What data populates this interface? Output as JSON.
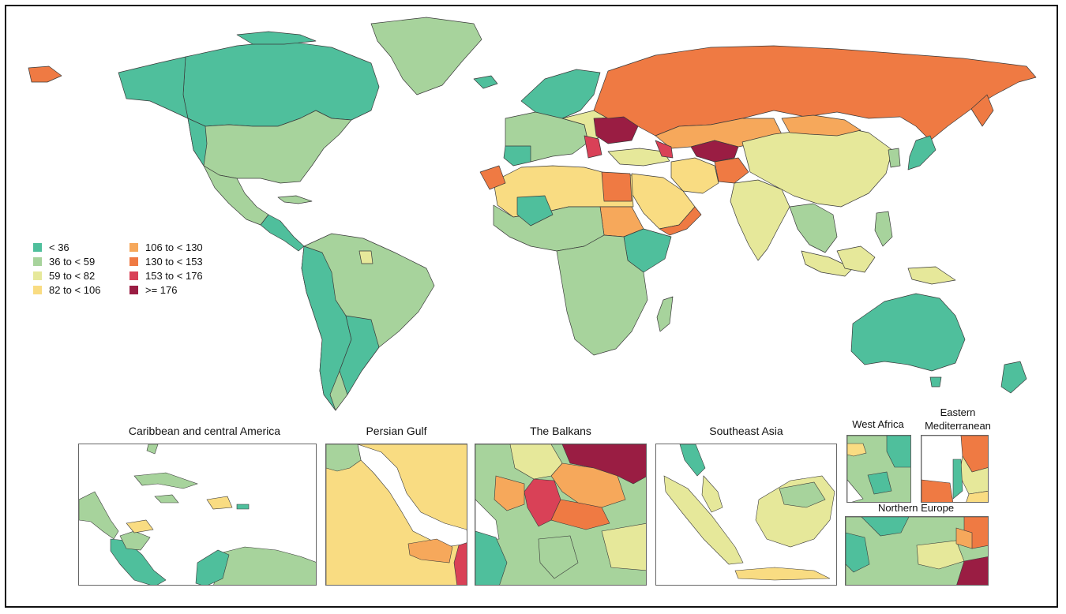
{
  "legend": {
    "items": [
      {
        "label": "< 36",
        "color": "#4fbf9c"
      },
      {
        "label": "36 to < 59",
        "color": "#a7d39c"
      },
      {
        "label": "59 to < 82",
        "color": "#e6e89a"
      },
      {
        "label": "82 to < 106",
        "color": "#f9dc82"
      },
      {
        "label": "106 to < 130",
        "color": "#f6a85b"
      },
      {
        "label": "130 to < 153",
        "color": "#ef7a43"
      },
      {
        "label": "153 to < 176",
        "color": "#d94157"
      },
      {
        "label": ">= 176",
        "color": "#9a1d43"
      }
    ]
  },
  "insets": [
    {
      "id": "caribbean",
      "title": "Caribbean and central America"
    },
    {
      "id": "persian-gulf",
      "title": "Persian Gulf"
    },
    {
      "id": "balkans",
      "title": "The Balkans"
    },
    {
      "id": "southeast-asia",
      "title": "Southeast Asia"
    },
    {
      "id": "west-africa",
      "title": "West Africa"
    },
    {
      "id": "eastern-mediterranean",
      "title": "Eastern Mediterranean"
    },
    {
      "id": "northern-europe",
      "title": "Northern Europe"
    }
  ],
  "colors": {
    "lt36": "#4fbf9c",
    "c36to59": "#a7d39c",
    "c59to82": "#e6e89a",
    "c82to106": "#f9dc82",
    "c106to130": "#f6a85b",
    "c130to153": "#ef7a43",
    "c153to176": "#d94157",
    "ge176": "#9a1d43",
    "border": "#3a3a3a"
  }
}
